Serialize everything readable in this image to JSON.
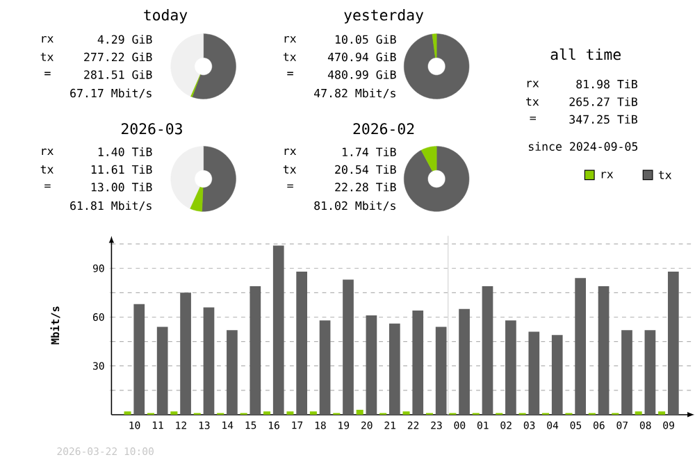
{
  "chart_data": [
    {
      "type": "donut",
      "title": "today",
      "categories": [
        null,
        null,
        null
      ],
      "values": [
        55.6,
        0.9,
        43.5
      ],
      "colors": [
        "#606060",
        "#8ccc00",
        "#f0f0f0"
      ],
      "annotations": [
        "rx",
        "4.29 GiB",
        "tx",
        "277.22 GiB",
        "=",
        "281.51 GiB",
        "67.17 Mbit/s"
      ]
    },
    {
      "type": "donut",
      "title": "yesterday",
      "categories": [
        null,
        null
      ],
      "values": [
        97.9,
        2.1
      ],
      "colors": [
        "#606060",
        "#8ccc00"
      ],
      "annotations": [
        "rx",
        "10.05 GiB",
        "tx",
        "470.94 GiB",
        "=",
        "480.99 GiB",
        "47.82 Mbit/s"
      ]
    },
    {
      "type": "donut",
      "title": "2026-03",
      "categories": [
        null,
        null,
        null
      ],
      "values": [
        50.7,
        6.1,
        43.2
      ],
      "colors": [
        "#606060",
        "#8ccc00",
        "#f0f0f0"
      ],
      "annotations": [
        "rx",
        "1.40 TiB",
        "tx",
        "11.61 TiB",
        "=",
        "13.00 TiB",
        "61.81 Mbit/s"
      ]
    },
    {
      "type": "donut",
      "title": "2026-02",
      "categories": [
        null,
        null
      ],
      "values": [
        92.2,
        7.8
      ],
      "colors": [
        "#606060",
        "#8ccc00"
      ],
      "annotations": [
        "rx",
        "1.74 TiB",
        "tx",
        "20.54 TiB",
        "=",
        "22.28 TiB",
        "81.02 Mbit/s"
      ]
    },
    {
      "type": "other",
      "title": "all time",
      "annotations": [
        "rx",
        "81.98 TiB",
        "tx",
        "265.27 TiB",
        "=",
        "347.25 TiB",
        "since 2024-09-05"
      ]
    },
    {
      "type": "bar",
      "categories": [
        "10",
        "11",
        "12",
        "13",
        "14",
        "15",
        "16",
        "17",
        "18",
        "19",
        "20",
        "21",
        "22",
        "23",
        "00",
        "01",
        "02",
        "03",
        "04",
        "05",
        "06",
        "07",
        "08",
        "09"
      ],
      "series": [
        {
          "name": "rx",
          "color": "#8ccc00",
          "values": [
            2,
            1,
            2,
            1,
            1,
            1,
            2,
            2,
            2,
            1,
            3,
            1,
            2,
            1,
            1,
            1,
            1,
            1,
            1,
            1,
            1,
            1,
            2,
            2
          ]
        },
        {
          "name": "tx",
          "color": "#606060",
          "values": [
            68,
            54,
            75,
            66,
            52,
            79,
            104,
            88,
            58,
            83,
            61,
            56,
            64,
            54,
            65,
            79,
            58,
            51,
            49,
            84,
            79,
            52,
            52,
            88
          ]
        }
      ],
      "ylabel": "Mbit/s",
      "ylim": [
        0,
        110
      ],
      "yticks": [
        {
          "value": 15,
          "label": null
        },
        30,
        {
          "value": 45,
          "label": null
        },
        60,
        {
          "value": 75,
          "label": null
        },
        90,
        {
          "value": 105,
          "label": null
        }
      ],
      "grid": "y",
      "legend": "top right",
      "ref_lines": [
        {
          "axis": "x",
          "value": "00",
          "color": "#dddddd"
        }
      ],
      "annotations": [
        "2026-03-22 10:00"
      ]
    }
  ]
}
